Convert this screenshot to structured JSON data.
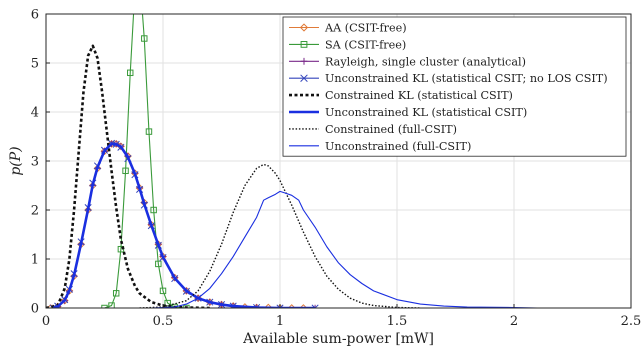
{
  "chart_data": {
    "type": "line",
    "title": "",
    "xlabel": "Available sum-power [mW]",
    "ylabel": "p(P)",
    "xlim": [
      0,
      2.5
    ],
    "ylim": [
      0,
      6
    ],
    "xticks": [
      0,
      0.5,
      1,
      1.5,
      2,
      2.5
    ],
    "yticks": [
      0,
      1,
      2,
      3,
      4,
      5,
      6
    ],
    "xtick_labels": [
      "0",
      "0.5",
      "1",
      "1.5",
      "2",
      "2.5"
    ],
    "ytick_labels": [
      "0",
      "1",
      "2",
      "3",
      "4",
      "5",
      "6"
    ],
    "grid": true,
    "legend_position": "top-right",
    "series": [
      {
        "name": "AA (CSIT-free)",
        "color": "#e07b39",
        "line": "solid",
        "marker": "diamond",
        "x": [
          0.02,
          0.05,
          0.08,
          0.1,
          0.12,
          0.15,
          0.18,
          0.2,
          0.22,
          0.25,
          0.28,
          0.3,
          0.32,
          0.35,
          0.38,
          0.4,
          0.42,
          0.45,
          0.48,
          0.5,
          0.55,
          0.6,
          0.65,
          0.7,
          0.75,
          0.8,
          0.85,
          0.9,
          0.95,
          1.0,
          1.05,
          1.1
        ],
        "y": [
          0,
          0.03,
          0.15,
          0.35,
          0.65,
          1.3,
          2.0,
          2.5,
          2.85,
          3.2,
          3.35,
          3.35,
          3.3,
          3.1,
          2.75,
          2.45,
          2.15,
          1.7,
          1.3,
          1.05,
          0.62,
          0.35,
          0.2,
          0.12,
          0.07,
          0.04,
          0.02,
          0.01,
          0.01,
          0,
          0,
          0
        ]
      },
      {
        "name": "SA (CSIT-free)",
        "color": "#3a9a3a",
        "line": "solid",
        "marker": "square",
        "x": [
          0.25,
          0.28,
          0.3,
          0.32,
          0.34,
          0.36,
          0.38,
          0.4,
          0.42,
          0.44,
          0.46,
          0.48,
          0.5,
          0.52,
          0.55,
          0.6
        ],
        "y": [
          0,
          0.05,
          0.3,
          1.2,
          2.8,
          4.8,
          6.5,
          6.8,
          5.5,
          3.6,
          2.0,
          0.9,
          0.35,
          0.1,
          0.02,
          0
        ]
      },
      {
        "name": "Rayleigh, single cluster (analytical)",
        "color": "#7a2a8a",
        "line": "solid",
        "marker": "plus",
        "x": [
          0.03,
          0.05,
          0.08,
          0.1,
          0.12,
          0.15,
          0.18,
          0.2,
          0.22,
          0.25,
          0.28,
          0.3,
          0.32,
          0.35,
          0.38,
          0.4,
          0.42,
          0.45,
          0.48,
          0.5,
          0.55,
          0.6,
          0.65,
          0.7,
          0.75,
          0.8,
          0.9,
          1.0,
          1.15
        ],
        "y": [
          0,
          0.03,
          0.15,
          0.35,
          0.65,
          1.3,
          2.0,
          2.5,
          2.85,
          3.2,
          3.35,
          3.35,
          3.3,
          3.1,
          2.75,
          2.45,
          2.15,
          1.7,
          1.3,
          1.05,
          0.62,
          0.35,
          0.2,
          0.12,
          0.07,
          0.04,
          0.01,
          0,
          0
        ]
      },
      {
        "name": "Unconstrained KL (statistical CSIT; no LOS CSIT)",
        "color": "#3344bb",
        "line": "solid",
        "marker": "x",
        "x": [
          0.03,
          0.05,
          0.08,
          0.1,
          0.12,
          0.15,
          0.18,
          0.2,
          0.22,
          0.25,
          0.28,
          0.3,
          0.32,
          0.35,
          0.38,
          0.4,
          0.42,
          0.45,
          0.48,
          0.5,
          0.55,
          0.6,
          0.65,
          0.7,
          0.75,
          0.8,
          0.9,
          1.0,
          1.15
        ],
        "y": [
          0,
          0.04,
          0.17,
          0.38,
          0.7,
          1.35,
          2.05,
          2.55,
          2.9,
          3.22,
          3.36,
          3.34,
          3.28,
          3.05,
          2.72,
          2.42,
          2.1,
          1.68,
          1.28,
          1.03,
          0.6,
          0.34,
          0.2,
          0.12,
          0.07,
          0.04,
          0.01,
          0,
          0
        ]
      },
      {
        "name": "Constrained KL (statistical CSIT)",
        "color": "#111111",
        "line": "dashed-bold",
        "marker": "none",
        "x": [
          0.0,
          0.05,
          0.08,
          0.1,
          0.12,
          0.14,
          0.16,
          0.18,
          0.2,
          0.22,
          0.24,
          0.26,
          0.28,
          0.3,
          0.32,
          0.35,
          0.38,
          0.4,
          0.45,
          0.5,
          0.55,
          0.6,
          0.7
        ],
        "y": [
          0,
          0.05,
          0.4,
          1.0,
          2.0,
          3.2,
          4.4,
          5.15,
          5.35,
          5.1,
          4.4,
          3.6,
          2.8,
          2.05,
          1.4,
          0.8,
          0.45,
          0.3,
          0.12,
          0.05,
          0.02,
          0.01,
          0
        ]
      },
      {
        "name": "Unconstrained KL (statistical CSIT)",
        "color": "#1a2fe0",
        "line": "solid-bold",
        "marker": "none",
        "x": [
          0.03,
          0.05,
          0.08,
          0.1,
          0.12,
          0.15,
          0.18,
          0.2,
          0.22,
          0.25,
          0.28,
          0.3,
          0.32,
          0.35,
          0.38,
          0.4,
          0.42,
          0.45,
          0.48,
          0.5,
          0.55,
          0.6,
          0.65,
          0.7,
          0.75,
          0.8,
          0.9,
          1.0,
          1.15
        ],
        "y": [
          0,
          0.03,
          0.16,
          0.36,
          0.67,
          1.32,
          2.02,
          2.52,
          2.87,
          3.21,
          3.35,
          3.34,
          3.29,
          3.08,
          2.74,
          2.44,
          2.12,
          1.69,
          1.29,
          1.04,
          0.61,
          0.35,
          0.2,
          0.12,
          0.07,
          0.04,
          0.01,
          0,
          0
        ]
      },
      {
        "name": "Constrained (full-CSIT)",
        "color": "#111111",
        "line": "dotted",
        "marker": "none",
        "x": [
          0.4,
          0.5,
          0.6,
          0.65,
          0.7,
          0.75,
          0.8,
          0.85,
          0.9,
          0.93,
          0.95,
          0.98,
          1.0,
          1.05,
          1.1,
          1.15,
          1.2,
          1.25,
          1.3,
          1.35,
          1.4,
          1.5,
          1.6
        ],
        "y": [
          0,
          0.02,
          0.15,
          0.35,
          0.75,
          1.3,
          1.95,
          2.5,
          2.85,
          2.93,
          2.9,
          2.75,
          2.6,
          2.1,
          1.55,
          1.05,
          0.65,
          0.38,
          0.2,
          0.1,
          0.05,
          0.01,
          0
        ]
      },
      {
        "name": "Unconstrained (full-CSIT)",
        "color": "#1a2fe0",
        "line": "solid",
        "marker": "none",
        "x": [
          0.45,
          0.55,
          0.6,
          0.65,
          0.7,
          0.75,
          0.8,
          0.85,
          0.9,
          0.93,
          0.95,
          0.98,
          1.0,
          1.02,
          1.05,
          1.08,
          1.1,
          1.15,
          1.2,
          1.25,
          1.3,
          1.35,
          1.4,
          1.5,
          1.6,
          1.7,
          1.8,
          2.0,
          2.1
        ],
        "y": [
          0,
          0.02,
          0.08,
          0.2,
          0.4,
          0.7,
          1.05,
          1.45,
          1.85,
          2.2,
          2.25,
          2.32,
          2.38,
          2.35,
          2.3,
          2.2,
          2.0,
          1.65,
          1.25,
          0.92,
          0.68,
          0.5,
          0.35,
          0.17,
          0.08,
          0.04,
          0.02,
          0.01,
          0
        ]
      }
    ]
  }
}
